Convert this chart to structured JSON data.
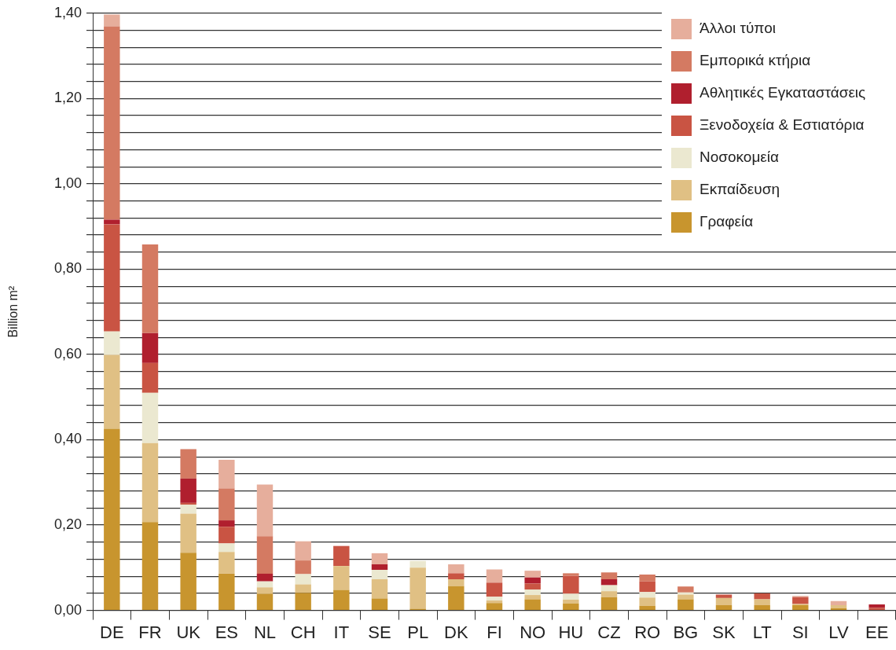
{
  "chart_data": {
    "type": "bar",
    "stacked": true,
    "ylabel": "Billion m²",
    "grid": "y",
    "legend": "top right",
    "categories": [
      "DE",
      "FR",
      "UK",
      "ES",
      "NL",
      "CH",
      "IT",
      "SE",
      "PL",
      "DK",
      "FI",
      "NO",
      "HU",
      "CZ",
      "RO",
      "BG",
      "SK",
      "LT",
      "SI",
      "LV",
      "EE"
    ],
    "ylim": [
      0,
      1.4
    ],
    "yticks": [
      {
        "value": 0,
        "label": "0,00"
      },
      {
        "value": 0.04,
        "label": null
      },
      {
        "value": 0.08,
        "label": null
      },
      {
        "value": 0.12,
        "label": null
      },
      {
        "value": 0.16,
        "label": null
      },
      {
        "value": 0.2,
        "label": "0,20"
      },
      {
        "value": 0.24,
        "label": null
      },
      {
        "value": 0.28,
        "label": null
      },
      {
        "value": 0.32,
        "label": null
      },
      {
        "value": 0.36,
        "label": null
      },
      {
        "value": 0.4,
        "label": "0,40"
      },
      {
        "value": 0.44,
        "label": null
      },
      {
        "value": 0.48,
        "label": null
      },
      {
        "value": 0.52,
        "label": null
      },
      {
        "value": 0.56,
        "label": null
      },
      {
        "value": 0.6,
        "label": "0,60"
      },
      {
        "value": 0.64,
        "label": null
      },
      {
        "value": 0.68,
        "label": null
      },
      {
        "value": 0.72,
        "label": null
      },
      {
        "value": 0.76,
        "label": null
      },
      {
        "value": 0.8,
        "label": "0,80"
      },
      {
        "value": 0.84,
        "label": null
      },
      {
        "value": 0.88,
        "label": null
      },
      {
        "value": 0.92,
        "label": null
      },
      {
        "value": 0.96,
        "label": null
      },
      {
        "value": 1.0,
        "label": "1,00"
      },
      {
        "value": 1.04,
        "label": null
      },
      {
        "value": 1.08,
        "label": null
      },
      {
        "value": 1.12,
        "label": null
      },
      {
        "value": 1.16,
        "label": null
      },
      {
        "value": 1.2,
        "label": "1,20"
      },
      {
        "value": 1.24,
        "label": null
      },
      {
        "value": 1.28,
        "label": null
      },
      {
        "value": 1.32,
        "label": null
      },
      {
        "value": 1.36,
        "label": null
      },
      {
        "value": 1.4,
        "label": "1,40"
      }
    ],
    "series": [
      {
        "name": "Γραφεία",
        "color": "#c8952e",
        "values": [
          0.426,
          0.207,
          0.135,
          0.086,
          0.039,
          0.041,
          0.048,
          0.028,
          0.004,
          0.057,
          0.017,
          0.026,
          0.016,
          0.031,
          0.011,
          0.026,
          0.012,
          0.012,
          0.012,
          0.005,
          0
        ]
      },
      {
        "name": "Εκπαίδευση",
        "color": "#e0c084",
        "values": [
          0.173,
          0.185,
          0.092,
          0.051,
          0.015,
          0.02,
          0.056,
          0.045,
          0.096,
          0.016,
          0.006,
          0.01,
          0.009,
          0.014,
          0.019,
          0.011,
          0.017,
          0.014,
          0.003,
          0.007,
          0
        ]
      },
      {
        "name": "Νοσοκομεία",
        "color": "#ebe8d0",
        "values": [
          0.055,
          0.118,
          0.021,
          0.02,
          0.014,
          0.024,
          0,
          0.022,
          0.016,
          0,
          0.009,
          0.013,
          0.014,
          0.014,
          0.013,
          0.005,
          0,
          0,
          0,
          0,
          0
        ]
      },
      {
        "name": "Ξενοδοχεία & Εστιατόρια",
        "color": "#c95443",
        "values": [
          0.251,
          0.07,
          0.004,
          0.039,
          0,
          0,
          0.047,
          0,
          0,
          0.014,
          0.033,
          0.014,
          0.042,
          0,
          0.025,
          0,
          0.008,
          0.014,
          0.016,
          0,
          0.006
        ]
      },
      {
        "name": "Αθλητικές Εγκαταστάσεις",
        "color": "#b01f2e",
        "values": [
          0.011,
          0.07,
          0.057,
          0.015,
          0.018,
          0,
          0,
          0.013,
          0,
          0,
          0,
          0.014,
          0,
          0.014,
          0,
          0,
          0,
          0,
          0,
          0,
          0.008
        ]
      },
      {
        "name": "Εμπορικά κτήρια",
        "color": "#d47a62",
        "values": [
          0.453,
          0.208,
          0.069,
          0.075,
          0.088,
          0.032,
          0,
          0,
          0,
          0,
          0,
          0,
          0.006,
          0.016,
          0.016,
          0.014,
          0,
          0,
          0,
          0,
          0
        ]
      },
      {
        "name": "Άλλοι τύποι",
        "color": "#e6ae9c",
        "values": [
          0.028,
          0,
          0,
          0.067,
          0.121,
          0.045,
          0,
          0.026,
          0,
          0.021,
          0.031,
          0.016,
          0,
          0,
          0,
          0,
          0,
          0,
          0.003,
          0.01,
          0
        ]
      }
    ]
  }
}
